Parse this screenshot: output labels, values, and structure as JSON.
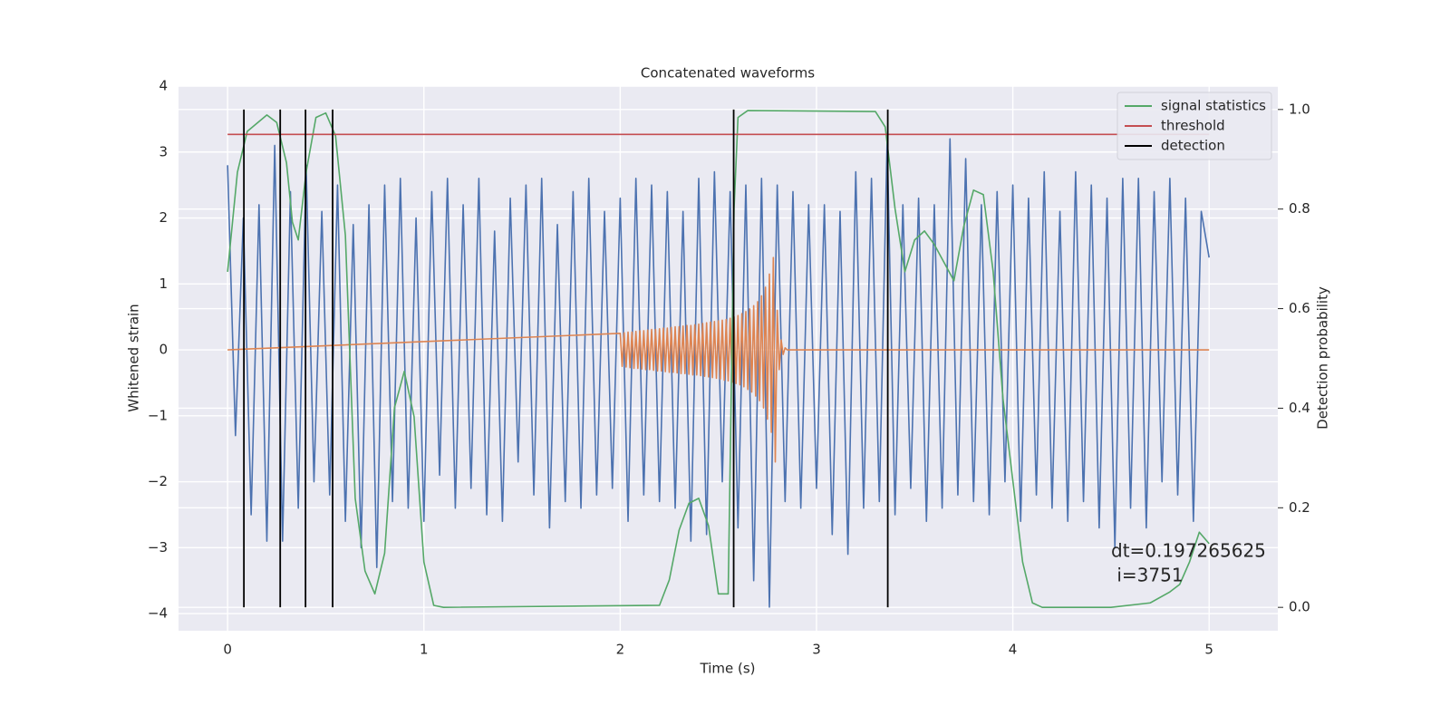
{
  "chart_data": {
    "type": "line",
    "title": "Concatenated waveforms",
    "xlabel": "Time (s)",
    "ylabel": "Whitened strain",
    "y2label": "Detection probability",
    "xlim": [
      -0.25,
      5.35
    ],
    "ylim": [
      -4.26,
      4.0
    ],
    "y2lim": [
      -0.047,
      1.047
    ],
    "xticks": [
      0,
      1,
      2,
      3,
      4,
      5
    ],
    "yticks": [
      {
        "value": -4,
        "label": "−4"
      },
      {
        "value": -3,
        "label": "−3"
      },
      {
        "value": -2,
        "label": "−2"
      },
      {
        "value": -1,
        "label": "−1"
      },
      0,
      1,
      2,
      3,
      4
    ],
    "y2ticks": [
      {
        "value": 0,
        "label": "0.0"
      },
      0.2,
      0.4,
      0.6,
      0.8,
      {
        "value": 1,
        "label": "1.0"
      }
    ],
    "grid": true,
    "legend": "upper right",
    "annotation": "dt=0.197265625\n i=3751",
    "series": [
      {
        "color": "#4c72b0",
        "x": [
          0,
          0.04,
          0.08,
          0.12,
          0.16,
          0.2,
          0.24,
          0.28,
          0.32,
          0.36,
          0.4,
          0.44,
          0.48,
          0.52,
          0.56,
          0.6,
          0.64,
          0.68,
          0.72,
          0.76,
          0.8,
          0.84,
          0.88,
          0.92,
          0.96,
          1,
          1.04,
          1.08,
          1.12,
          1.16,
          1.2,
          1.24,
          1.28,
          1.32,
          1.36,
          1.4,
          1.44,
          1.48,
          1.52,
          1.56,
          1.6,
          1.64,
          1.68,
          1.72,
          1.76,
          1.8,
          1.84,
          1.88,
          1.92,
          1.96,
          2,
          2.04,
          2.08,
          2.12,
          2.16,
          2.2,
          2.24,
          2.28,
          2.32,
          2.36,
          2.4,
          2.44,
          2.48,
          2.52,
          2.56,
          2.6,
          2.64,
          2.68,
          2.72,
          2.76,
          2.8,
          2.84,
          2.88,
          2.92,
          2.96,
          3,
          3.04,
          3.08,
          3.12,
          3.16,
          3.2,
          3.24,
          3.28,
          3.32,
          3.36,
          3.4,
          3.44,
          3.48,
          3.52,
          3.56,
          3.6,
          3.64,
          3.68,
          3.72,
          3.76,
          3.8,
          3.84,
          3.88,
          3.92,
          3.96,
          4,
          4.04,
          4.08,
          4.12,
          4.16,
          4.2,
          4.24,
          4.28,
          4.32,
          4.36,
          4.4,
          4.44,
          4.48,
          4.52,
          4.56,
          4.6,
          4.64,
          4.68,
          4.72,
          4.76,
          4.8,
          4.84,
          4.88,
          4.92,
          4.96,
          5
        ],
        "values": [
          2.8,
          -1.3,
          2.0,
          -2.5,
          2.2,
          -2.9,
          3.1,
          -2.9,
          2.4,
          -2.4,
          2.8,
          -2.0,
          2.1,
          -2.2,
          2.5,
          -2.6,
          1.9,
          -3.0,
          2.2,
          -3.3,
          2.5,
          -2.3,
          2.6,
          -2.4,
          2.0,
          -2.6,
          2.4,
          -1.9,
          2.6,
          -2.4,
          2.2,
          -2.1,
          2.6,
          -2.5,
          1.8,
          -2.6,
          2.3,
          -1.7,
          2.5,
          -2.2,
          2.6,
          -2.7,
          1.9,
          -2.3,
          2.4,
          -2.4,
          2.6,
          -2.2,
          2.1,
          -2.1,
          2.3,
          -2.6,
          2.6,
          -2.2,
          2.5,
          -2.3,
          2.4,
          -2.4,
          2.1,
          -2.9,
          2.6,
          -2.8,
          2.7,
          -2.0,
          2.4,
          -2.7,
          2.5,
          -3.5,
          2.6,
          -3.9,
          2.5,
          -2.3,
          2.4,
          -2.4,
          2.2,
          -2.1,
          2.2,
          -2.8,
          2.1,
          -3.1,
          2.7,
          -2.4,
          2.6,
          -2.3,
          3.2,
          -2.5,
          2.2,
          -2.1,
          2.3,
          -2.6,
          2.2,
          -2.4,
          3.2,
          -2.2,
          2.9,
          -2.3,
          2.2,
          -2.5,
          2.4,
          -2.0,
          2.5,
          -2.6,
          2.3,
          -2.2,
          2.7,
          -2.4,
          2.1,
          -2.6,
          2.7,
          -2.3,
          2.5,
          -2.7,
          2.3,
          -3.0,
          2.6,
          -2.4,
          2.6,
          -2.7,
          2.4,
          -2.0,
          2.6,
          -2.2,
          2.3,
          -2.6,
          2.1,
          1.4
        ]
      },
      {
        "color": "#dd8452",
        "x": [
          0,
          2,
          2.01,
          2.02,
          2.03,
          2.04,
          2.05,
          2.06,
          2.07,
          2.08,
          2.09,
          2.1,
          2.11,
          2.12,
          2.13,
          2.14,
          2.15,
          2.16,
          2.17,
          2.18,
          2.19,
          2.2,
          2.21,
          2.22,
          2.23,
          2.24,
          2.25,
          2.26,
          2.27,
          2.28,
          2.29,
          2.3,
          2.31,
          2.32,
          2.33,
          2.34,
          2.35,
          2.36,
          2.37,
          2.38,
          2.39,
          2.4,
          2.41,
          2.42,
          2.43,
          2.44,
          2.45,
          2.46,
          2.47,
          2.48,
          2.49,
          2.5,
          2.51,
          2.52,
          2.53,
          2.54,
          2.55,
          2.56,
          2.57,
          2.58,
          2.59,
          2.6,
          2.61,
          2.62,
          2.63,
          2.64,
          2.65,
          2.66,
          2.67,
          2.68,
          2.69,
          2.7,
          2.71,
          2.72,
          2.73,
          2.74,
          2.75,
          2.76,
          2.77,
          2.78,
          2.79,
          2.8,
          2.81,
          2.82,
          2.83,
          2.84,
          2.85,
          5
        ],
        "values": [
          0,
          0.25,
          -0.25,
          0.26,
          -0.26,
          0.27,
          -0.27,
          0.27,
          -0.28,
          0.28,
          -0.28,
          0.29,
          -0.29,
          0.29,
          -0.3,
          0.3,
          -0.3,
          0.31,
          -0.31,
          0.31,
          -0.32,
          0.32,
          -0.32,
          0.33,
          -0.33,
          0.33,
          -0.34,
          0.34,
          -0.34,
          0.35,
          -0.35,
          0.35,
          -0.36,
          0.36,
          -0.36,
          0.37,
          -0.37,
          0.37,
          -0.38,
          0.38,
          -0.38,
          0.39,
          -0.39,
          0.4,
          -0.4,
          0.41,
          -0.41,
          0.42,
          -0.42,
          0.43,
          -0.43,
          0.44,
          -0.44,
          0.45,
          -0.46,
          0.46,
          -0.47,
          0.48,
          -0.49,
          0.5,
          -0.51,
          0.52,
          -0.53,
          0.55,
          -0.56,
          0.58,
          -0.6,
          0.62,
          -0.64,
          0.67,
          -0.7,
          0.73,
          -0.77,
          0.82,
          -0.88,
          0.95,
          -1.05,
          1.15,
          -1.25,
          1.4,
          -1.7,
          0.6,
          -0.3,
          0.15,
          -0.07,
          0.03,
          0,
          0
        ]
      },
      {
        "name": "signal statistics",
        "color": "#55a868",
        "axis": "y2",
        "x": [
          0,
          0.05,
          0.1,
          0.2,
          0.25,
          0.3,
          0.33,
          0.36,
          0.4,
          0.45,
          0.5,
          0.55,
          0.6,
          0.65,
          0.7,
          0.75,
          0.8,
          0.85,
          0.9,
          0.95,
          1,
          1.05,
          1.1,
          2.2,
          2.25,
          2.3,
          2.35,
          2.4,
          2.45,
          2.5,
          2.55,
          2.58,
          2.6,
          2.65,
          3.3,
          3.35,
          3.4,
          3.45,
          3.5,
          3.55,
          3.6,
          3.7,
          3.75,
          3.8,
          3.85,
          3.9,
          3.95,
          4,
          4.05,
          4.1,
          4.15,
          4.5,
          4.7,
          4.8,
          4.85,
          4.9,
          4.95,
          5
        ],
        "values": [
          0.674,
          0.874,
          0.956,
          0.989,
          0.974,
          0.893,
          0.774,
          0.738,
          0.874,
          0.984,
          0.993,
          0.947,
          0.747,
          0.219,
          0.073,
          0.027,
          0.109,
          0.401,
          0.474,
          0.383,
          0.091,
          0.004,
          0,
          0.004,
          0.055,
          0.155,
          0.209,
          0.219,
          0.164,
          0.027,
          0.027,
          0.801,
          0.984,
          0.998,
          0.996,
          0.965,
          0.801,
          0.674,
          0.738,
          0.756,
          0.729,
          0.656,
          0.765,
          0.838,
          0.829,
          0.674,
          0.419,
          0.255,
          0.091,
          0.009,
          0,
          0,
          0.009,
          0.031,
          0.046,
          0.091,
          0.151,
          0.128
        ]
      },
      {
        "name": "threshold",
        "color": "#c44e52",
        "axis": "y2",
        "x": [
          0,
          5
        ],
        "values": [
          0.95,
          0.95
        ]
      },
      {
        "name": "detection",
        "color": "#000000",
        "axis": "y2",
        "type": "vlines",
        "x": [
          0.083,
          0.268,
          0.397,
          0.535,
          2.578,
          3.363
        ],
        "ymin": 0,
        "ymax": 1
      }
    ]
  }
}
